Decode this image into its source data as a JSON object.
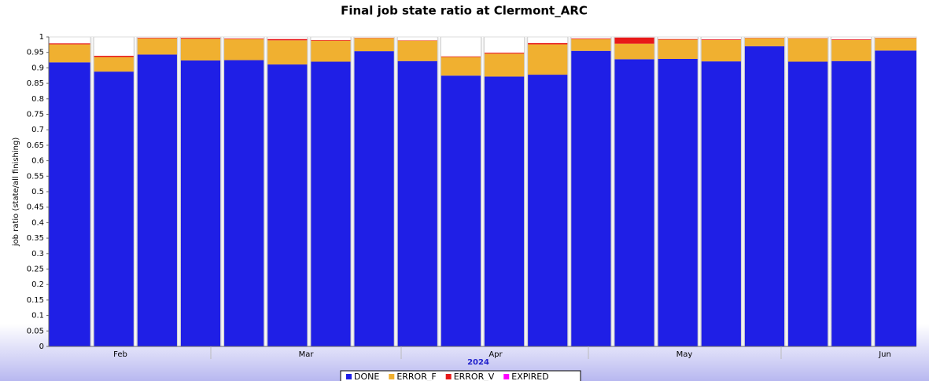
{
  "chart_data": {
    "type": "stacked_bar",
    "title": "Final job state ratio at Clermont_ARC",
    "y_label": "job ratio (state/all finishing)",
    "x_labels": [
      "Feb",
      "Mar",
      "Apr",
      "May",
      "Jun"
    ],
    "x_title": "2024",
    "ylim": [
      0,
      1
    ],
    "yticks": [
      0,
      0.05,
      0.1,
      0.15,
      0.2,
      0.25,
      0.3,
      0.35,
      0.4,
      0.45,
      0.5,
      0.55,
      0.6,
      0.65,
      0.7,
      0.75,
      0.8,
      0.85,
      0.9,
      0.95,
      1
    ],
    "series": [
      {
        "name": "DONE",
        "color": "#1f1fe6",
        "values": [
          0.918,
          0.888,
          0.943,
          0.924,
          0.925,
          0.911,
          0.92,
          0.954,
          0.922,
          0.875,
          0.872,
          0.878,
          0.955,
          0.928,
          0.929,
          0.921,
          0.97,
          0.92,
          0.922,
          0.956
        ]
      },
      {
        "name": "ERROR_F",
        "color": "#f0b030",
        "values": [
          0.058,
          0.047,
          0.052,
          0.07,
          0.068,
          0.078,
          0.068,
          0.042,
          0.066,
          0.06,
          0.074,
          0.098,
          0.038,
          0.05,
          0.062,
          0.069,
          0.026,
          0.075,
          0.068,
          0.04
        ]
      },
      {
        "name": "ERROR_V",
        "color": "#e81818",
        "values": [
          0.003,
          0.004,
          0.002,
          0.003,
          0.002,
          0.004,
          0.002,
          0.001,
          0.001,
          0.002,
          0.003,
          0.004,
          0.002,
          0.02,
          0.002,
          0.002,
          0.001,
          0.001,
          0.002,
          0.001
        ]
      },
      {
        "name": "EXPIRED",
        "color": "#ff00ff",
        "values": [
          0,
          0,
          0,
          0,
          0,
          0,
          0,
          0,
          0,
          0,
          0,
          0,
          0,
          0,
          0,
          0,
          0,
          0,
          0,
          0
        ]
      }
    ]
  }
}
